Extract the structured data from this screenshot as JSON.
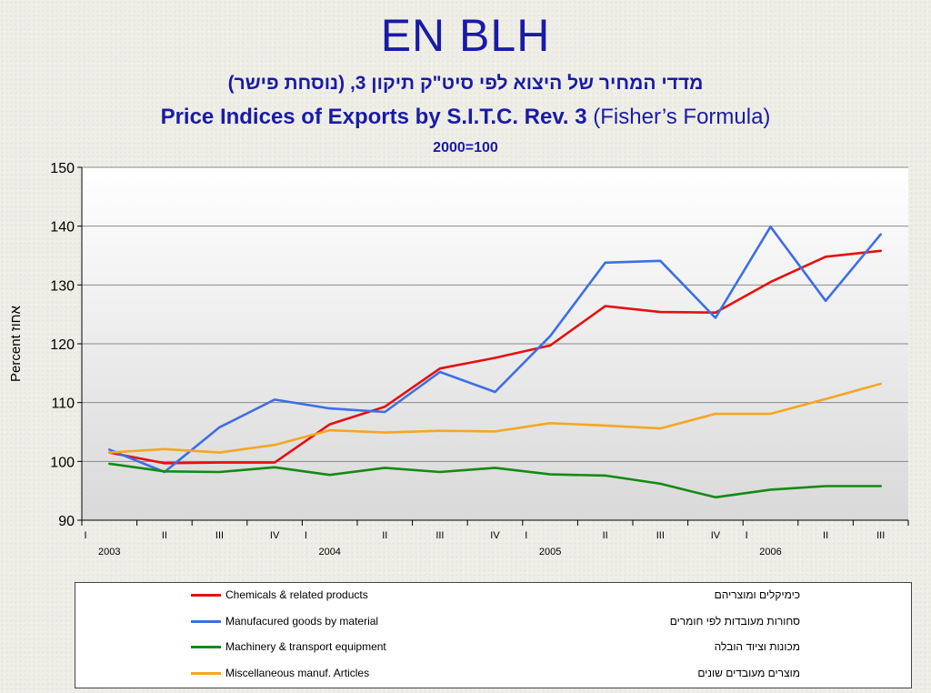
{
  "header": {
    "main_title": "EN BLH",
    "hebrew_title": "מדדי המחיר של היצוא לפי סיט\"ק תיקון 3,  (נוסחת פישר)",
    "english_title_bold": "Price Indices of Exports by S.I.T.C. Rev. 3",
    "english_title_rest": " (Fisher’s Formula)",
    "base": "2000=100"
  },
  "chart_data": {
    "type": "line",
    "ylabel": "Percent  אחוז",
    "ylim": [
      90,
      150
    ],
    "yticks": [
      90,
      100,
      110,
      120,
      130,
      140,
      150
    ],
    "grid": true,
    "x": [
      "I 2003",
      "II 2003",
      "III 2003",
      "IV 2003",
      "I 2004",
      "II 2004",
      "III 2004",
      "IV 2004",
      "I 2005",
      "II 2005",
      "III 2005",
      "IV 2005",
      "I 2006",
      "II 2006",
      "III 2006"
    ],
    "quarter_labels": [
      "I",
      "II",
      "III",
      "IV",
      "I",
      "II",
      "III",
      "IV",
      "I",
      "II",
      "III",
      "IV",
      "I",
      "II",
      "III"
    ],
    "year_labels": [
      {
        "label": "2003",
        "index": 0
      },
      {
        "label": "2004",
        "index": 4
      },
      {
        "label": "2005",
        "index": 8
      },
      {
        "label": "2006",
        "index": 12
      }
    ],
    "series": [
      {
        "name": "Chemicals & related products",
        "name_he": "כימיקלים ומוצריהם",
        "color": "#e41010",
        "values": [
          101.5,
          99.7,
          99.8,
          99.8,
          106.3,
          109.3,
          115.8,
          117.6,
          119.7,
          126.4,
          125.4,
          125.3,
          130.5,
          134.8,
          135.8
        ]
      },
      {
        "name": "Manufacured goods by material",
        "name_he": "סחורות מעובדות  לפי חומרים",
        "color": "#3c6ee6",
        "values": [
          102.0,
          98.2,
          105.8,
          110.5,
          109.0,
          108.4,
          115.2,
          111.8,
          121.3,
          133.8,
          134.1,
          124.4,
          139.9,
          127.3,
          138.6
        ]
      },
      {
        "name": "Machinery & transport equipment",
        "name_he": "מכונות וציוד הובלה",
        "color": "#138a13",
        "values": [
          99.6,
          98.3,
          98.2,
          99.0,
          97.7,
          98.9,
          98.2,
          98.9,
          97.8,
          97.6,
          96.2,
          93.9,
          95.2,
          95.8,
          95.8
        ]
      },
      {
        "name": "Miscellaneous manuf. Articles",
        "name_he": "מוצרים מעובדים שונים",
        "color": "#f5a623",
        "values": [
          101.5,
          102.1,
          101.5,
          102.8,
          105.3,
          104.9,
          105.2,
          105.1,
          106.5,
          106.1,
          105.6,
          108.1,
          108.1,
          110.6,
          113.2
        ]
      }
    ]
  }
}
